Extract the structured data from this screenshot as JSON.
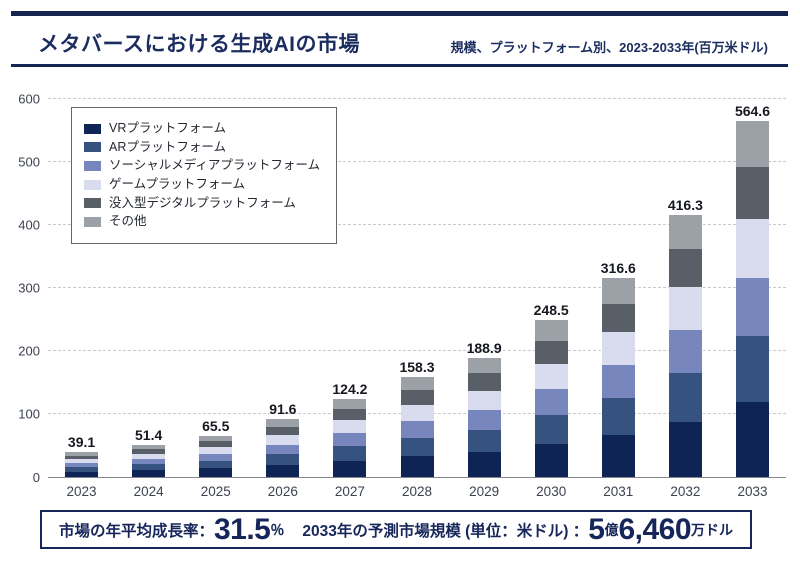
{
  "header": {
    "title": "メタバースにおける生成AIの市場",
    "subtitle": "規模、プラットフォーム別、2023-2033年(百万米ドル)"
  },
  "chart_data": {
    "type": "bar",
    "stacked": true,
    "title": "メタバースにおける生成AIの市場",
    "subtitle": "規模、プラットフォーム別、2023-2033年(百万米ドル)",
    "categories": [
      "2023",
      "2024",
      "2025",
      "2026",
      "2027",
      "2028",
      "2029",
      "2030",
      "2031",
      "2032",
      "2033"
    ],
    "totals": [
      39.1,
      51.4,
      65.5,
      91.6,
      124.2,
      158.3,
      188.9,
      248.5,
      316.6,
      416.3,
      564.6
    ],
    "series": [
      {
        "name": "VRプラットフォーム",
        "color": "#0e2455",
        "values": [
          8.2,
          10.8,
          13.8,
          19.3,
          26.1,
          33.2,
          39.7,
          52.2,
          66.5,
          87.4,
          118.6
        ]
      },
      {
        "name": "ARプラットフォーム",
        "color": "#36527f",
        "values": [
          7.2,
          9.5,
          12.1,
          16.9,
          23.0,
          29.3,
          34.9,
          46.0,
          58.6,
          77.0,
          104.5
        ]
      },
      {
        "name": "ソーシャルメディアプラットフォーム",
        "color": "#7787bd",
        "values": [
          6.5,
          8.5,
          10.8,
          15.1,
          20.5,
          26.1,
          31.2,
          41.0,
          52.2,
          68.7,
          93.2
        ]
      },
      {
        "name": "ゲームプラットフォーム",
        "color": "#d8dcee",
        "values": [
          6.5,
          8.5,
          10.8,
          15.1,
          20.5,
          26.1,
          31.2,
          41.0,
          52.2,
          68.7,
          93.2
        ]
      },
      {
        "name": "没入型デジタルプラットフォーム",
        "color": "#585f66",
        "values": [
          5.7,
          7.5,
          9.5,
          13.3,
          18.0,
          23.0,
          27.4,
          36.0,
          45.9,
          60.4,
          81.9
        ]
      },
      {
        "name": "その他",
        "color": "#9ba1a7",
        "values": [
          5.0,
          6.6,
          8.5,
          11.9,
          16.1,
          20.6,
          24.5,
          32.3,
          41.2,
          54.1,
          73.2
        ]
      }
    ],
    "ylim": [
      0,
      600
    ],
    "yticks": [
      0,
      100,
      200,
      300,
      400,
      500,
      600
    ],
    "grid": "horizontal-dashed",
    "legend_position": "top-left-inside",
    "value_labels": "totals-above-bars"
  },
  "footer": {
    "cagr_label": "市場の年平均成長率：",
    "cagr_value": "31.5",
    "cagr_unit": "％",
    "forecast_label": "2033年の予測市場規模 (単位：米ドル) ：",
    "forecast_value_1": "5",
    "forecast_unit_1": "億",
    "forecast_value_2": "6,460",
    "forecast_unit_2": "万ドル"
  },
  "colors": {
    "brand_navy": "#16265a",
    "rule_navy": "#16254f",
    "grid": "#c7c9cc",
    "axis": "#84888d",
    "tick_text": "#3c4250",
    "value_label_text": "#15181e"
  }
}
